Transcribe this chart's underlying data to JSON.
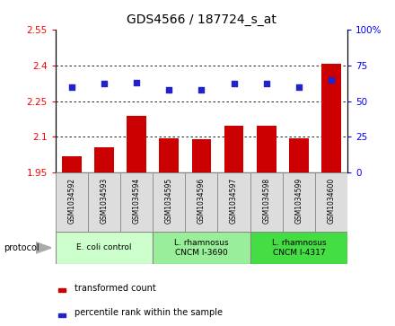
{
  "title": "GDS4566 / 187724_s_at",
  "samples": [
    "GSM1034592",
    "GSM1034593",
    "GSM1034594",
    "GSM1034595",
    "GSM1034596",
    "GSM1034597",
    "GSM1034598",
    "GSM1034599",
    "GSM1034600"
  ],
  "bar_values": [
    2.02,
    2.055,
    2.19,
    2.095,
    2.09,
    2.145,
    2.145,
    2.095,
    2.405
  ],
  "dot_values": [
    60,
    62,
    63,
    58,
    58,
    62,
    62,
    60,
    65
  ],
  "bar_color": "#cc0000",
  "dot_color": "#2222cc",
  "ylim_left": [
    1.95,
    2.55
  ],
  "ylim_right": [
    0,
    100
  ],
  "yticks_left": [
    1.95,
    2.1,
    2.25,
    2.4,
    2.55
  ],
  "ytick_labels_left": [
    "1.95",
    "2.1",
    "2.25",
    "2.4",
    "2.55"
  ],
  "yticks_right": [
    0,
    25,
    50,
    75,
    100
  ],
  "ytick_labels_right": [
    "0",
    "25",
    "50",
    "75",
    "100%"
  ],
  "protocols": [
    {
      "label": "E. coli control",
      "indices": [
        0,
        1,
        2
      ],
      "color": "#ccffcc"
    },
    {
      "label": "L. rhamnosus\nCNCM I-3690",
      "indices": [
        3,
        4,
        5
      ],
      "color": "#99ee99"
    },
    {
      "label": "L. rhamnosus\nCNCM I-4317",
      "indices": [
        6,
        7,
        8
      ],
      "color": "#44dd44"
    }
  ],
  "bar_baseline": 1.95,
  "legend_bar_label": "transformed count",
  "legend_dot_label": "percentile rank within the sample",
  "protocol_label": "protocol"
}
